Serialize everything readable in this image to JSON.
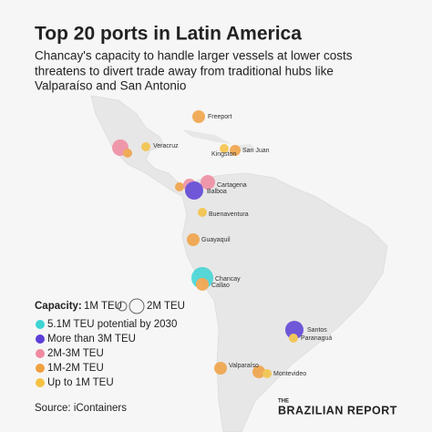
{
  "header": {
    "title": "Top 20 ports in Latin America",
    "subtitle": [
      "Chancay's capacity to handle larger vessels at lower costs",
      "threatens to divert trade away from traditional hubs like",
      "Valparaíso and San Antonio"
    ]
  },
  "ports": [
    {
      "label": "Freeport"
    },
    {
      "label": "Veracruz"
    },
    {
      "label": "Kingston"
    },
    {
      "label": "San Juan"
    },
    {
      "label": "Cartagena"
    },
    {
      "label": "Balboa"
    },
    {
      "label": "Buenaventura"
    },
    {
      "label": "Guayaquil"
    },
    {
      "label": "Chancay"
    },
    {
      "label": "Callao"
    },
    {
      "label": "Santos"
    },
    {
      "label": "Paranaguá"
    },
    {
      "label": "Valparaíso"
    },
    {
      "label": "Montevideo"
    }
  ],
  "legend": {
    "heading": "Capacity:",
    "size_small": "1M TEU",
    "size_large": "2M TEU",
    "items": [
      "5.1M TEU potential by 2030",
      "More than 3M TEU",
      "2M-3M TEU",
      "1M-2M TEU",
      "Up to 1M TEU"
    ]
  },
  "source": "Source: iContainers",
  "logo": {
    "small": "THE",
    "main": "BRAZILIAN REPORT"
  }
}
